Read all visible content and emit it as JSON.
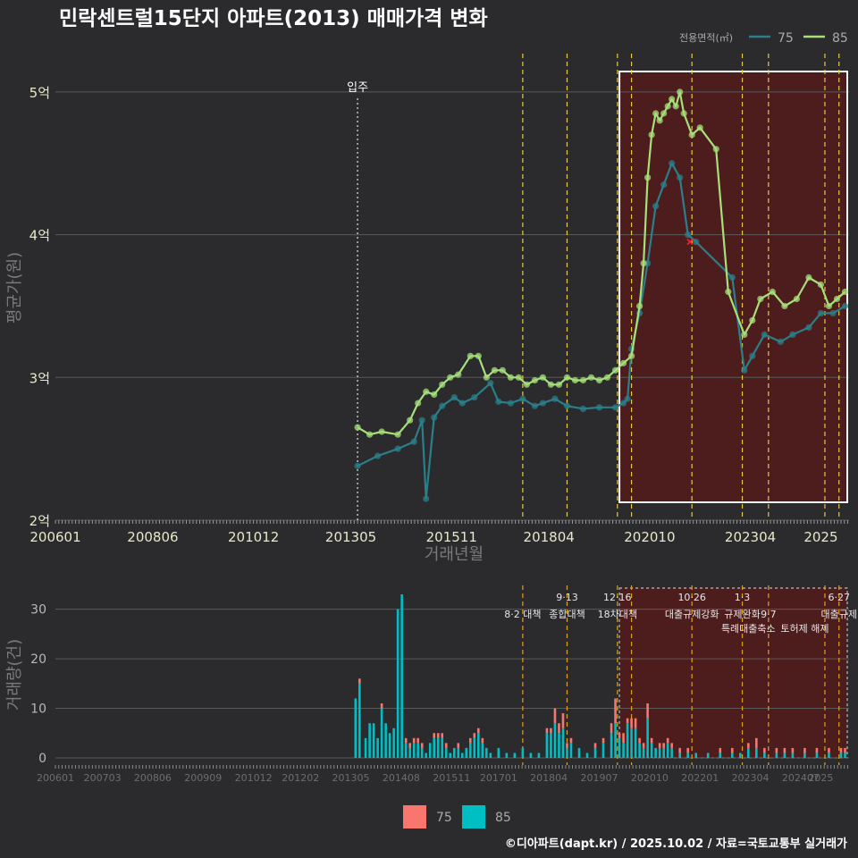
{
  "title": "민락센트럴15단지 아파트(2013) 매매가격 변화",
  "footer": "©디아파트(dapt.kr) / 2025.10.02 / 자료=국토교통부 실거래가",
  "colors": {
    "bg": "#2b2b2d",
    "s75": "#2a7f8a",
    "s85": "#a6e07a",
    "bar75": "#f8766d",
    "bar85": "#00bfc4",
    "grid": "#5a5a5a",
    "policy": "#e6c84a",
    "highlight": "#5a1a1a"
  },
  "chart_data": [
    {
      "type": "line",
      "name": "price",
      "title": "민락센트럴15단지 아파트(2013) 매매가격 변화",
      "xlabel": "거래년월",
      "ylabel": "평균가(원)",
      "x_ticks": [
        "200601",
        "200806",
        "201012",
        "201305",
        "201511",
        "201804",
        "202010",
        "202304",
        "2025"
      ],
      "y_ticks": [
        "2억",
        "3억",
        "4억",
        "5억"
      ],
      "ylim": [
        2.0,
        5.3
      ],
      "xlim": [
        2006.0,
        2025.7
      ],
      "legend_title": "전용면적(㎡)",
      "legend": [
        "75",
        "85"
      ],
      "annotations": [
        {
          "label": "입주",
          "x": 2013.5
        }
      ],
      "policy_lines_x": [
        2017.6,
        2018.7,
        2019.95,
        2020.3,
        2021.8,
        2023.05,
        2023.7,
        2025.1,
        2025.45
      ],
      "highlight_x": [
        2020.0,
        2025.7
      ],
      "outlier": {
        "x": 2021.75,
        "y": 3.95
      },
      "series": [
        {
          "name": "75",
          "x": [
            2013.5,
            2014.0,
            2014.5,
            2014.9,
            2015.1,
            2015.2,
            2015.4,
            2015.6,
            2015.9,
            2016.1,
            2016.4,
            2016.8,
            2017.0,
            2017.3,
            2017.6,
            2017.9,
            2018.1,
            2018.4,
            2018.7,
            2019.1,
            2019.5,
            2019.9,
            2020.1,
            2020.2,
            2020.3,
            2020.5,
            2020.7,
            2020.9,
            2021.1,
            2021.3,
            2021.5,
            2021.7,
            2021.9,
            2022.8,
            2023.1,
            2023.3,
            2023.6,
            2024.0,
            2024.3,
            2024.7,
            2025.0,
            2025.3,
            2025.6
          ],
          "y": [
            2.38,
            2.45,
            2.5,
            2.55,
            2.7,
            2.15,
            2.72,
            2.8,
            2.86,
            2.82,
            2.86,
            2.96,
            2.83,
            2.82,
            2.85,
            2.8,
            2.82,
            2.85,
            2.8,
            2.78,
            2.79,
            2.79,
            2.82,
            2.85,
            3.2,
            3.45,
            3.8,
            4.2,
            4.35,
            4.5,
            4.4,
            4.0,
            3.95,
            3.7,
            3.05,
            3.15,
            3.3,
            3.25,
            3.3,
            3.35,
            3.45,
            3.45,
            3.5
          ]
        },
        {
          "name": "85",
          "x": [
            2013.5,
            2013.8,
            2014.1,
            2014.5,
            2014.8,
            2015.0,
            2015.2,
            2015.4,
            2015.6,
            2015.8,
            2016.0,
            2016.3,
            2016.5,
            2016.7,
            2016.9,
            2017.1,
            2017.3,
            2017.5,
            2017.7,
            2017.9,
            2018.1,
            2018.3,
            2018.5,
            2018.7,
            2018.9,
            2019.1,
            2019.3,
            2019.5,
            2019.7,
            2019.9,
            2020.1,
            2020.3,
            2020.5,
            2020.6,
            2020.7,
            2020.8,
            2020.9,
            2021.0,
            2021.1,
            2021.2,
            2021.3,
            2021.4,
            2021.5,
            2021.6,
            2021.8,
            2022.0,
            2022.4,
            2022.7,
            2023.1,
            2023.3,
            2023.5,
            2023.8,
            2024.1,
            2024.4,
            2024.7,
            2025.0,
            2025.2,
            2025.4,
            2025.6
          ],
          "y": [
            2.65,
            2.6,
            2.62,
            2.6,
            2.7,
            2.82,
            2.9,
            2.88,
            2.95,
            3.0,
            3.02,
            3.15,
            3.15,
            3.0,
            3.05,
            3.05,
            3.0,
            3.0,
            2.95,
            2.98,
            3.0,
            2.95,
            2.95,
            3.0,
            2.98,
            2.98,
            3.0,
            2.98,
            3.0,
            3.05,
            3.1,
            3.15,
            3.5,
            3.8,
            4.4,
            4.7,
            4.85,
            4.8,
            4.85,
            4.9,
            4.95,
            4.9,
            5.0,
            4.85,
            4.7,
            4.75,
            4.6,
            3.6,
            3.3,
            3.4,
            3.55,
            3.6,
            3.5,
            3.55,
            3.7,
            3.65,
            3.5,
            3.55,
            3.6
          ]
        }
      ]
    },
    {
      "type": "bar",
      "name": "volume",
      "ylabel": "거래량(건)",
      "y_ticks": [
        "0",
        "10",
        "20",
        "30"
      ],
      "ylim": [
        0,
        33
      ],
      "x_ticks": [
        "200601",
        "200703",
        "200806",
        "200909",
        "201012",
        "201202",
        "201305",
        "201408",
        "201511",
        "201701",
        "201804",
        "201907",
        "202010",
        "202201",
        "202304",
        "202407",
        "2025"
      ],
      "legend": [
        "75",
        "85"
      ],
      "policies": [
        {
          "x": 2017.6,
          "label": "8·2 대책",
          "tier": 1
        },
        {
          "x": 2018.7,
          "label": "9·13",
          "tier": 0
        },
        {
          "x": 2018.7,
          "label": "종합대책",
          "tier": 1
        },
        {
          "x": 2019.95,
          "label": "12·16",
          "tier": 0
        },
        {
          "x": 2019.95,
          "label": "18차대책",
          "tier": 1
        },
        {
          "x": 2021.8,
          "label": "10·26",
          "tier": 0
        },
        {
          "x": 2021.8,
          "label": "대출규제강화",
          "tier": 1
        },
        {
          "x": 2023.05,
          "label": "1·3",
          "tier": 0
        },
        {
          "x": 2023.05,
          "label": "규제완화",
          "tier": 1
        },
        {
          "x": 2023.7,
          "label": "9·7",
          "tier": 1
        },
        {
          "x": 2023.2,
          "label": "특례대출축소",
          "tier": 2
        },
        {
          "x": 2024.6,
          "label": "토허제 해제",
          "tier": 2
        },
        {
          "x": 2025.45,
          "label": "6·27",
          "tier": 0
        },
        {
          "x": 2025.45,
          "label": "대출규제",
          "tier": 1
        }
      ],
      "x": [
        2013.45,
        2013.55,
        2013.7,
        2013.8,
        2013.9,
        2014.0,
        2014.1,
        2014.2,
        2014.3,
        2014.4,
        2014.5,
        2014.6,
        2014.7,
        2014.8,
        2014.9,
        2015.0,
        2015.1,
        2015.2,
        2015.3,
        2015.4,
        2015.5,
        2015.6,
        2015.7,
        2015.8,
        2015.9,
        2016.0,
        2016.1,
        2016.2,
        2016.3,
        2016.4,
        2016.5,
        2016.6,
        2016.7,
        2016.8,
        2017.0,
        2017.2,
        2017.4,
        2017.6,
        2017.8,
        2018.0,
        2018.2,
        2018.3,
        2018.4,
        2018.5,
        2018.6,
        2018.7,
        2018.8,
        2019.0,
        2019.2,
        2019.4,
        2019.6,
        2019.8,
        2019.9,
        2020.0,
        2020.1,
        2020.2,
        2020.3,
        2020.4,
        2020.5,
        2020.6,
        2020.7,
        2020.8,
        2020.9,
        2021.0,
        2021.1,
        2021.2,
        2021.3,
        2021.5,
        2021.7,
        2021.9,
        2022.2,
        2022.5,
        2022.8,
        2023.0,
        2023.2,
        2023.4,
        2023.6,
        2023.9,
        2024.1,
        2024.3,
        2024.6,
        2024.9,
        2025.2,
        2025.5,
        2025.6
      ],
      "series": [
        {
          "name": "85",
          "values": [
            12,
            15,
            4,
            7,
            7,
            4,
            10,
            7,
            5,
            6,
            30,
            33,
            3,
            2,
            3,
            3,
            2,
            1,
            3,
            4,
            4,
            4,
            2,
            1,
            2,
            2,
            1,
            2,
            3,
            4,
            5,
            3,
            2,
            1,
            2,
            1,
            1,
            2,
            1,
            1,
            5,
            5,
            7,
            5,
            6,
            2,
            3,
            2,
            1,
            2,
            3,
            5,
            7,
            4,
            3,
            7,
            6,
            6,
            3,
            2,
            8,
            3,
            2,
            2,
            2,
            3,
            2,
            1,
            1,
            1,
            1,
            1,
            1,
            1,
            2,
            2,
            1,
            1,
            1,
            1,
            1,
            1,
            1,
            1,
            1
          ]
        },
        {
          "name": "75",
          "values": [
            0,
            1,
            0,
            0,
            0,
            0,
            1,
            0,
            0,
            0,
            0,
            0,
            1,
            1,
            1,
            1,
            1,
            0,
            0,
            1,
            1,
            1,
            1,
            0,
            0,
            1,
            0,
            0,
            1,
            1,
            1,
            1,
            0,
            0,
            0,
            0,
            0,
            0,
            0,
            0,
            1,
            1,
            3,
            2,
            3,
            1,
            1,
            0,
            0,
            1,
            1,
            2,
            5,
            1,
            2,
            1,
            2,
            2,
            1,
            1,
            3,
            1,
            0,
            1,
            1,
            1,
            1,
            1,
            1,
            0,
            0,
            1,
            1,
            0,
            1,
            2,
            1,
            1,
            1,
            1,
            1,
            1,
            1,
            1,
            1
          ]
        }
      ]
    }
  ]
}
